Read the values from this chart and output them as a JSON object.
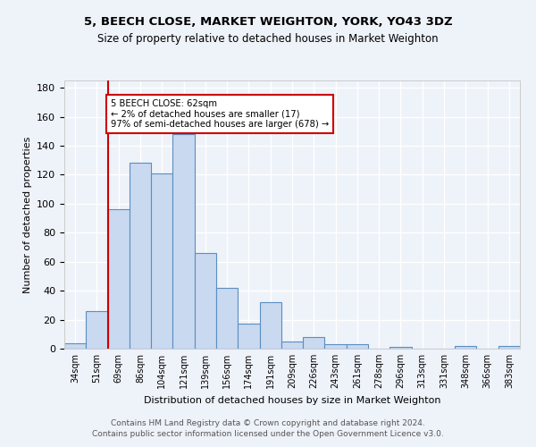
{
  "title1": "5, BEECH CLOSE, MARKET WEIGHTON, YORK, YO43 3DZ",
  "title2": "Size of property relative to detached houses in Market Weighton",
  "xlabel": "Distribution of detached houses by size in Market Weighton",
  "ylabel": "Number of detached properties",
  "categories": [
    "34sqm",
    "51sqm",
    "69sqm",
    "86sqm",
    "104sqm",
    "121sqm",
    "139sqm",
    "156sqm",
    "174sqm",
    "191sqm",
    "209sqm",
    "226sqm",
    "243sqm",
    "261sqm",
    "278sqm",
    "296sqm",
    "313sqm",
    "331sqm",
    "348sqm",
    "366sqm",
    "383sqm"
  ],
  "values": [
    4,
    26,
    96,
    128,
    121,
    148,
    66,
    42,
    17,
    32,
    5,
    8,
    3,
    3,
    0,
    1,
    0,
    0,
    2,
    0,
    2
  ],
  "bar_color": "#c9d9f0",
  "bar_edge_color": "#5a8fc2",
  "vline_x_idx": 1,
  "vline_color": "#cc0000",
  "annotation_text": "5 BEECH CLOSE: 62sqm\n← 2% of detached houses are smaller (17)\n97% of semi-detached houses are larger (678) →",
  "annotation_box_color": "white",
  "annotation_box_edge": "#cc0000",
  "ylim": [
    0,
    185
  ],
  "yticks": [
    0,
    20,
    40,
    60,
    80,
    100,
    120,
    140,
    160,
    180
  ],
  "footer": "Contains HM Land Registry data © Crown copyright and database right 2024.\nContains public sector information licensed under the Open Government Licence v3.0.",
  "bg_color": "#eef2f9",
  "grid_color": "white"
}
